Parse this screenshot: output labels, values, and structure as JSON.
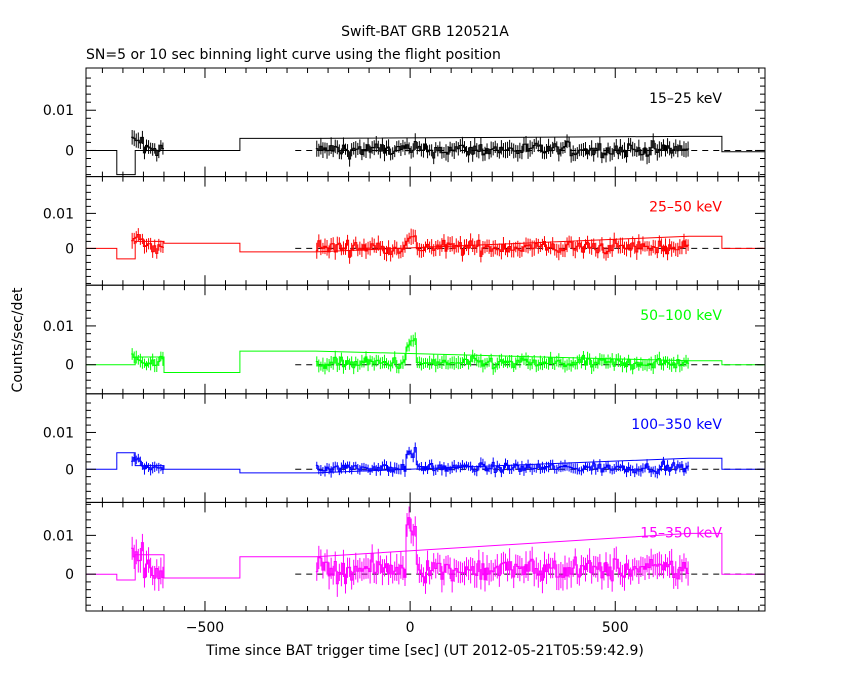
{
  "chart_data": {
    "type": "line",
    "title": "Swift-BAT GRB 120521A",
    "subtitle": "SN=5 or 10 sec binning light curve using the flight position",
    "xlabel": "Time since BAT trigger time [sec] (UT 2012-05-21T05:59:42.9)",
    "ylabel": "Counts/sec/det",
    "xlim": [
      -790,
      865
    ],
    "x_ticks": [
      -500,
      0,
      500
    ],
    "x_tick_labels": [
      "−500",
      "0",
      "500"
    ],
    "y_ticks": [
      0,
      0.01
    ],
    "y_tick_labels": [
      "0",
      "0.01"
    ],
    "zero_line_dashed": true,
    "panels": [
      {
        "name": "15–25 keV",
        "color": "#000000",
        "ylim": [
          -0.0065,
          0.0205
        ],
        "coarse_bins": [
          [
            -790,
            -715,
            0
          ],
          [
            -715,
            -670,
            -0.006
          ],
          [
            -670,
            -600,
            0
          ],
          [
            -600,
            -415,
            0
          ],
          [
            -415,
            -230,
            0.003
          ],
          [
            680,
            760,
            0.0035
          ],
          [
            760,
            865,
            -0.0003
          ]
        ],
        "fine": {
          "segments": [
            [
              -680,
              -600
            ],
            [
              -230,
              680
            ]
          ],
          "mean": 0.0002,
          "noise": 0.0018,
          "err": 0.0016,
          "burst": 0.0
        }
      },
      {
        "name": "25–50 keV",
        "color": "#ff0000",
        "ylim": [
          -0.0105,
          0.0205
        ],
        "coarse_bins": [
          [
            -790,
            -715,
            0
          ],
          [
            -715,
            -670,
            -0.003
          ],
          [
            -670,
            -600,
            0.002
          ],
          [
            -600,
            -415,
            0.0015
          ],
          [
            -415,
            -230,
            -0.001
          ],
          [
            680,
            760,
            0.0035
          ],
          [
            760,
            865,
            0
          ]
        ],
        "fine": {
          "segments": [
            [
              -680,
              -600
            ],
            [
              -230,
              680
            ]
          ],
          "mean": 0.0003,
          "noise": 0.002,
          "err": 0.0018,
          "burst": 0.002
        }
      },
      {
        "name": "50–100 keV",
        "color": "#00ff00",
        "ylim": [
          -0.0075,
          0.0205
        ],
        "coarse_bins": [
          [
            -790,
            -715,
            0
          ],
          [
            -715,
            -670,
            0
          ],
          [
            -670,
            -600,
            0.002
          ],
          [
            -600,
            -415,
            -0.002
          ],
          [
            -415,
            -230,
            0.0035
          ],
          [
            680,
            760,
            0.001
          ],
          [
            760,
            865,
            0
          ]
        ],
        "fine": {
          "segments": [
            [
              -680,
              -600
            ],
            [
              -230,
              680
            ]
          ],
          "mean": 0.0004,
          "noise": 0.0015,
          "err": 0.0014,
          "burst": 0.005
        }
      },
      {
        "name": "100–350 keV",
        "color": "#0000ff",
        "ylim": [
          -0.009,
          0.0205
        ],
        "coarse_bins": [
          [
            -790,
            -715,
            0
          ],
          [
            -715,
            -670,
            0.0045
          ],
          [
            -670,
            -600,
            0.001
          ],
          [
            -600,
            -415,
            0
          ],
          [
            -415,
            -230,
            -0.001
          ],
          [
            680,
            760,
            0.003
          ],
          [
            760,
            865,
            0
          ]
        ],
        "fine": {
          "segments": [
            [
              -680,
              -600
            ],
            [
              -230,
              680
            ]
          ],
          "mean": 0.0004,
          "noise": 0.0013,
          "err": 0.0012,
          "burst": 0.004
        }
      },
      {
        "name": "15–350 keV",
        "color": "#ff00ff",
        "ylim": [
          -0.0095,
          0.0185
        ],
        "coarse_bins": [
          [
            -790,
            -715,
            0
          ],
          [
            -715,
            -670,
            -0.0015
          ],
          [
            -670,
            -600,
            0.005
          ],
          [
            -600,
            -415,
            -0.001
          ],
          [
            -415,
            -230,
            0.0045
          ],
          [
            680,
            760,
            0.0105
          ],
          [
            760,
            865,
            0
          ]
        ],
        "fine": {
          "segments": [
            [
              -680,
              -600
            ],
            [
              -230,
              680
            ]
          ],
          "mean": 0.0012,
          "noise": 0.003,
          "err": 0.0027,
          "burst": 0.012
        }
      }
    ]
  }
}
